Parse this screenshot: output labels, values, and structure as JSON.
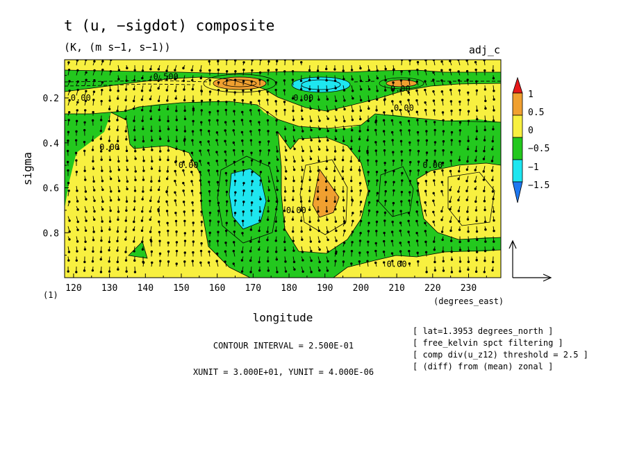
{
  "chart_data": {
    "type": "heatmap",
    "title": "t (u, −sigdot) composite",
    "subtitle": "(K, (m s−1, s−1))",
    "run_label": "adj_c",
    "xlabel": "longitude",
    "xunit_label": "(degrees_east)",
    "ylabel": "sigma",
    "y_index_label": "(1)",
    "xlim": [
      117.5,
      239
    ],
    "ylim": [
      0.03,
      1.0
    ],
    "y_inverted": true,
    "x_ticks": [
      120,
      130,
      140,
      150,
      160,
      170,
      180,
      190,
      200,
      210,
      220,
      230
    ],
    "x_tick_labels": [
      "120",
      "130",
      "140",
      "150",
      "160",
      "170",
      "180",
      "190",
      "200",
      "210",
      "220",
      "230"
    ],
    "y_ticks": [
      0.2,
      0.4,
      0.6,
      0.8
    ],
    "y_tick_labels": [
      "0.2",
      "0.4",
      "0.6",
      "0.8"
    ],
    "color_levels": [
      {
        "label": "1",
        "color": "#e6191a"
      },
      {
        "label": "0.5",
        "color": "#f0a030"
      },
      {
        "label": "0",
        "color": "#f8f040"
      },
      {
        "label": "−0.5",
        "color": "#23c81e"
      },
      {
        "label": "−1",
        "color": "#1ee6f0"
      },
      {
        "label": "−1.5",
        "color": "#1e78f0"
      }
    ],
    "colors": {
      "positive": "#f8f040",
      "negative": "#23c81e",
      "mid_positive": "#f0a030",
      "mid_negative": "#1ee6f0"
    },
    "contour_labels": [
      {
        "text": "-0.500",
        "lon": 145,
        "sigma": 0.105
      },
      {
        "text": "0.00",
        "lon": 122,
        "sigma": 0.2
      },
      {
        "text": "0.00",
        "lon": 130,
        "sigma": 0.42
      },
      {
        "text": "0.00",
        "lon": 152,
        "sigma": 0.5
      },
      {
        "text": "0.00",
        "lon": 184,
        "sigma": 0.2
      },
      {
        "text": "0.00",
        "lon": 211,
        "sigma": 0.16
      },
      {
        "text": "0.00",
        "lon": 212,
        "sigma": 0.245
      },
      {
        "text": "0.00",
        "lon": 220,
        "sigma": 0.5
      },
      {
        "text": "0.00",
        "lon": 182,
        "sigma": 0.7
      },
      {
        "text": "0.00",
        "lon": 210,
        "sigma": 0.94
      }
    ],
    "contour_interval": "CONTOUR INTERVAL = 2.500E-01",
    "vector_units": "XUNIT = 3.000E+01, YUNIT = 4.000E-06",
    "info_lines": [
      "[ lat=1.3953 degrees_north ]",
      "[ free_kelvin spct filtering ]",
      "[ comp div(u_z12) threshold = 2.5 ]",
      "[ (diff) from (mean) zonal ]"
    ]
  }
}
